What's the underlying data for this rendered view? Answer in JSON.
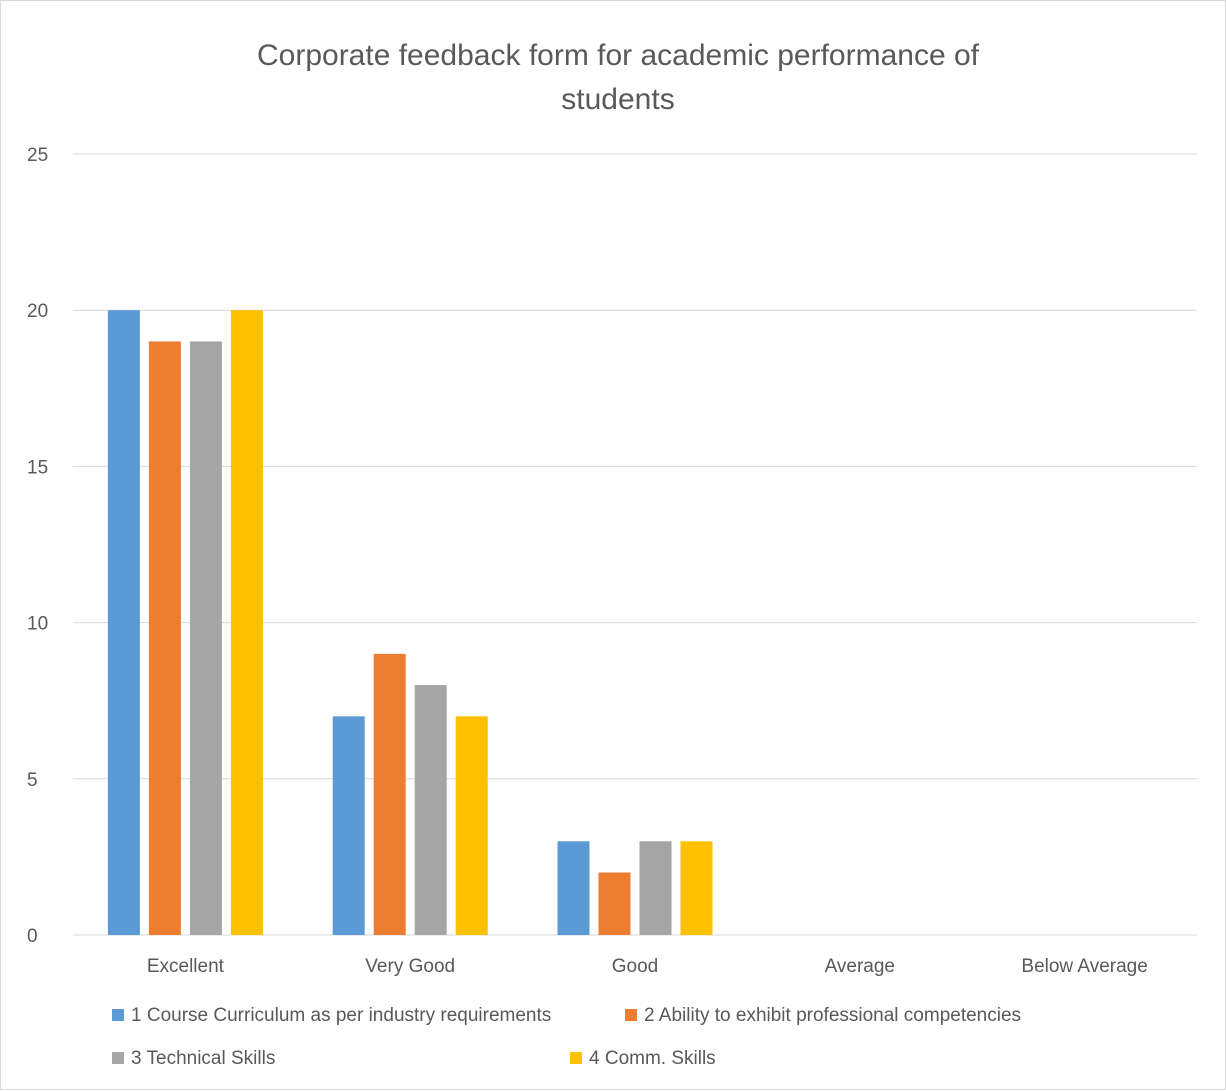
{
  "chart_data": {
    "type": "bar",
    "title": "Corporate feedback form for academic performance of students",
    "title_lines": [
      "Corporate feedback form for academic performance of",
      "students"
    ],
    "xlabel": "",
    "ylabel": "",
    "categories": [
      "Excellent",
      "Very Good",
      "Good",
      "Average",
      "Below Average"
    ],
    "ylim": [
      0,
      25
    ],
    "yticks": [
      0,
      5,
      10,
      15,
      20,
      25
    ],
    "grid": true,
    "legend_position": "bottom",
    "series": [
      {
        "name": "1 Course Curriculum as per industry requirements",
        "color": "#5B9BD5",
        "values": [
          20,
          7,
          3,
          0,
          0
        ]
      },
      {
        "name": "2 Ability to exhibit professional competencies",
        "color": "#ED7D31",
        "values": [
          19,
          9,
          2,
          0,
          0
        ]
      },
      {
        "name": "3 Technical Skills",
        "color": "#A5A5A5",
        "values": [
          19,
          8,
          3,
          0,
          0
        ]
      },
      {
        "name": "4 Comm. Skills",
        "color": "#FFC000",
        "values": [
          20,
          7,
          3,
          0,
          0
        ]
      }
    ]
  }
}
